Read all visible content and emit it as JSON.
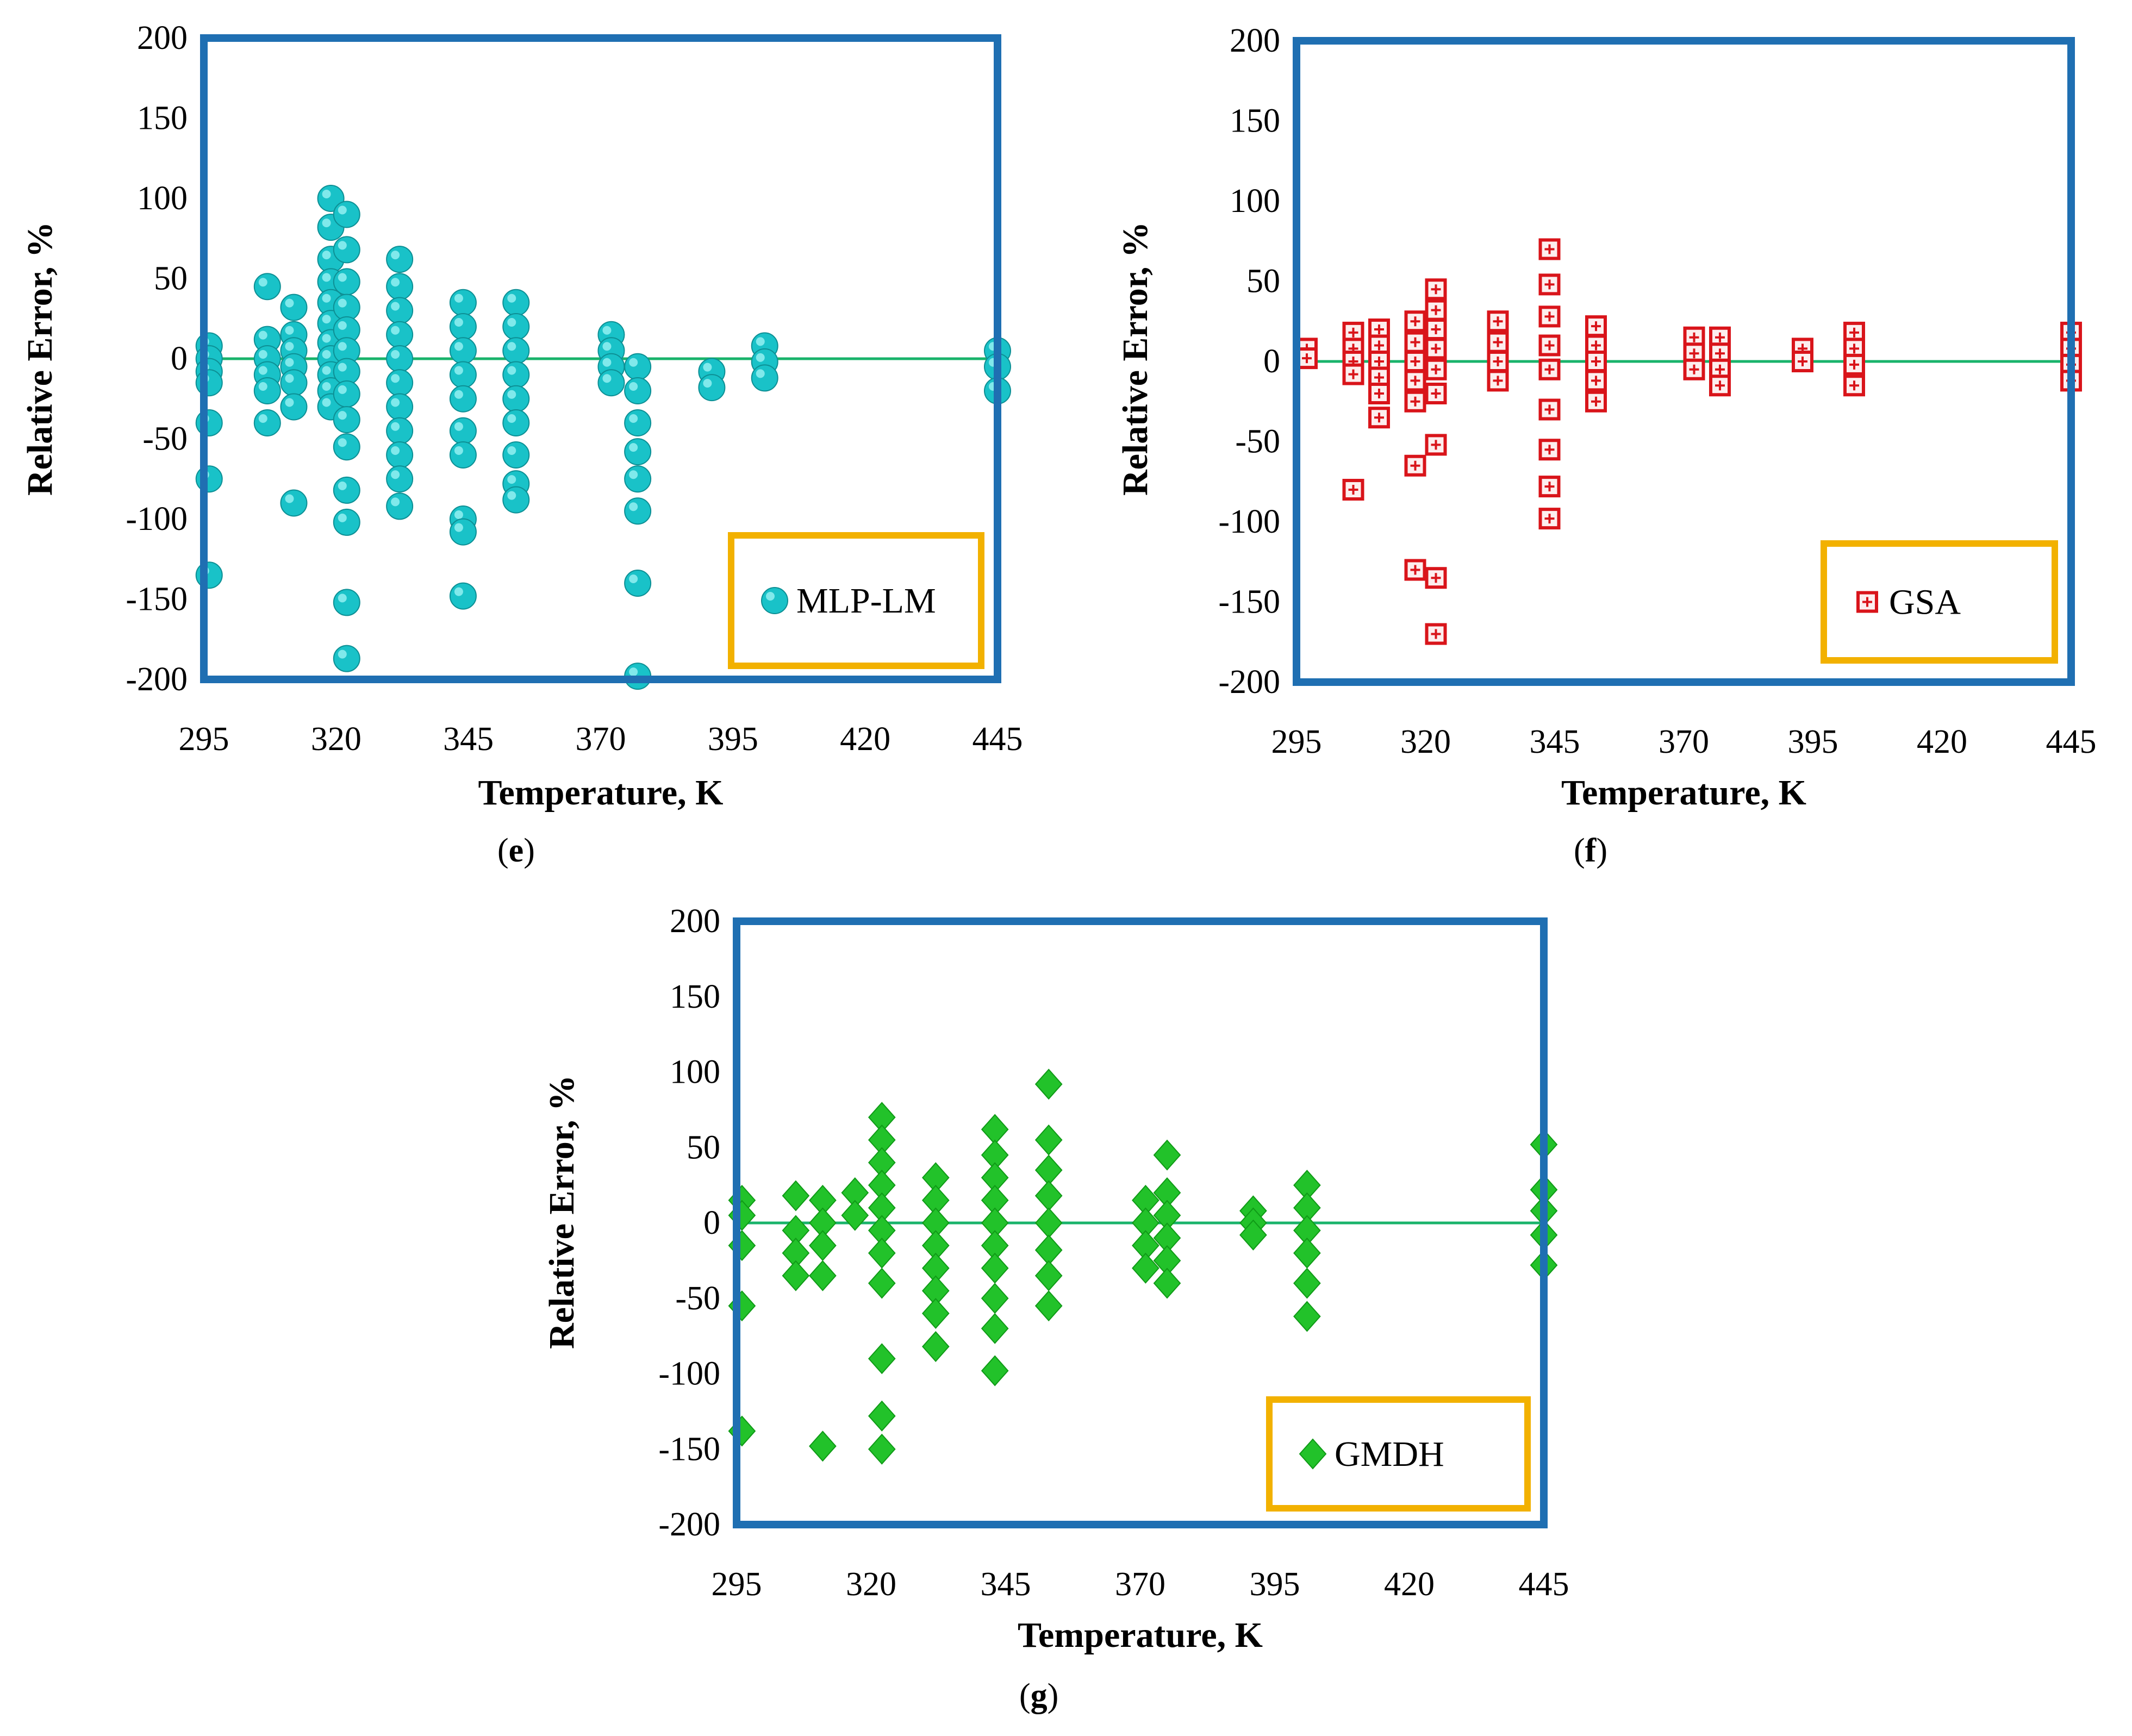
{
  "colors": {
    "plot_border": "#1f6fb2",
    "legend_border": "#f2b100",
    "zero_line": "#19b36b",
    "mlp": "#19c2c8",
    "gsa": "#d9141a",
    "gmdh": "#22c22a"
  },
  "chart_data": [
    {
      "type": "scatter",
      "panel_label": "e",
      "xlabel": "Temperature, K",
      "ylabel": "Relative Error, %",
      "xlim": [
        295,
        445
      ],
      "ylim": [
        -200,
        200
      ],
      "xticks": [
        "295",
        "320",
        "345",
        "370",
        "395",
        "420",
        "445"
      ],
      "yticks": [
        "200",
        "150",
        "100",
        "50",
        "0",
        "-50",
        "-100",
        "-150",
        "-200"
      ],
      "legend": "MLP-LM",
      "legend_position": "bottom-right",
      "marker": "sphere",
      "series": [
        {
          "name": "MLP-LM",
          "points": [
            [
              296,
              8
            ],
            [
              296,
              0
            ],
            [
              296,
              -8
            ],
            [
              296,
              -15
            ],
            [
              296,
              -40
            ],
            [
              296,
              -75
            ],
            [
              296,
              -135
            ],
            [
              307,
              45
            ],
            [
              307,
              12
            ],
            [
              307,
              0
            ],
            [
              307,
              -10
            ],
            [
              307,
              -20
            ],
            [
              307,
              -40
            ],
            [
              312,
              32
            ],
            [
              312,
              15
            ],
            [
              312,
              5
            ],
            [
              312,
              -5
            ],
            [
              312,
              -15
            ],
            [
              312,
              -30
            ],
            [
              312,
              -90
            ],
            [
              319,
              100
            ],
            [
              319,
              82
            ],
            [
              319,
              62
            ],
            [
              319,
              48
            ],
            [
              319,
              35
            ],
            [
              319,
              22
            ],
            [
              319,
              10
            ],
            [
              319,
              0
            ],
            [
              319,
              -10
            ],
            [
              319,
              -20
            ],
            [
              319,
              -30
            ],
            [
              322,
              90
            ],
            [
              322,
              68
            ],
            [
              322,
              48
            ],
            [
              322,
              32
            ],
            [
              322,
              18
            ],
            [
              322,
              5
            ],
            [
              322,
              -8
            ],
            [
              322,
              -22
            ],
            [
              322,
              -38
            ],
            [
              322,
              -55
            ],
            [
              322,
              -82
            ],
            [
              322,
              -102
            ],
            [
              322,
              -152
            ],
            [
              322,
              -187
            ],
            [
              332,
              62
            ],
            [
              332,
              45
            ],
            [
              332,
              30
            ],
            [
              332,
              15
            ],
            [
              332,
              0
            ],
            [
              332,
              -15
            ],
            [
              332,
              -30
            ],
            [
              332,
              -45
            ],
            [
              332,
              -60
            ],
            [
              332,
              -75
            ],
            [
              332,
              -92
            ],
            [
              344,
              35
            ],
            [
              344,
              20
            ],
            [
              344,
              5
            ],
            [
              344,
              -10
            ],
            [
              344,
              -25
            ],
            [
              344,
              -45
            ],
            [
              344,
              -60
            ],
            [
              344,
              -100
            ],
            [
              344,
              -108
            ],
            [
              344,
              -148
            ],
            [
              354,
              35
            ],
            [
              354,
              20
            ],
            [
              354,
              5
            ],
            [
              354,
              -10
            ],
            [
              354,
              -25
            ],
            [
              354,
              -40
            ],
            [
              354,
              -60
            ],
            [
              354,
              -78
            ],
            [
              354,
              -88
            ],
            [
              372,
              15
            ],
            [
              372,
              5
            ],
            [
              372,
              -5
            ],
            [
              372,
              -15
            ],
            [
              377,
              -5
            ],
            [
              377,
              -20
            ],
            [
              377,
              -40
            ],
            [
              377,
              -58
            ],
            [
              377,
              -75
            ],
            [
              377,
              -95
            ],
            [
              377,
              -140
            ],
            [
              377,
              -198
            ],
            [
              391,
              -8
            ],
            [
              391,
              -18
            ],
            [
              401,
              8
            ],
            [
              401,
              -2
            ],
            [
              401,
              -12
            ],
            [
              445,
              5
            ],
            [
              445,
              -5
            ],
            [
              445,
              -20
            ]
          ]
        }
      ]
    },
    {
      "type": "scatter",
      "panel_label": "f",
      "xlabel": "Temperature, K",
      "ylabel": "Relative Error, %",
      "xlim": [
        295,
        445
      ],
      "ylim": [
        -200,
        200
      ],
      "xticks": [
        "295",
        "320",
        "345",
        "370",
        "395",
        "420",
        "445"
      ],
      "yticks": [
        "200",
        "150",
        "100",
        "50",
        "0",
        "-50",
        "-100",
        "-150",
        "-200"
      ],
      "legend": "GSA",
      "legend_position": "bottom-right",
      "marker": "square-plus",
      "series": [
        {
          "name": "GSA",
          "points": [
            [
              297,
              8
            ],
            [
              297,
              2
            ],
            [
              306,
              18
            ],
            [
              306,
              8
            ],
            [
              306,
              0
            ],
            [
              306,
              -8
            ],
            [
              306,
              -80
            ],
            [
              311,
              20
            ],
            [
              311,
              10
            ],
            [
              311,
              0
            ],
            [
              311,
              -10
            ],
            [
              311,
              -20
            ],
            [
              311,
              -35
            ],
            [
              318,
              25
            ],
            [
              318,
              12
            ],
            [
              318,
              0
            ],
            [
              318,
              -12
            ],
            [
              318,
              -25
            ],
            [
              318,
              -65
            ],
            [
              318,
              -130
            ],
            [
              322,
              45
            ],
            [
              322,
              32
            ],
            [
              322,
              20
            ],
            [
              322,
              8
            ],
            [
              322,
              -5
            ],
            [
              322,
              -20
            ],
            [
              322,
              -52
            ],
            [
              322,
              -135
            ],
            [
              322,
              -170
            ],
            [
              334,
              25
            ],
            [
              334,
              12
            ],
            [
              334,
              0
            ],
            [
              334,
              -12
            ],
            [
              344,
              70
            ],
            [
              344,
              48
            ],
            [
              344,
              28
            ],
            [
              344,
              10
            ],
            [
              344,
              -5
            ],
            [
              344,
              -30
            ],
            [
              344,
              -55
            ],
            [
              344,
              -78
            ],
            [
              344,
              -98
            ],
            [
              353,
              22
            ],
            [
              353,
              10
            ],
            [
              353,
              0
            ],
            [
              353,
              -12
            ],
            [
              353,
              -25
            ],
            [
              372,
              15
            ],
            [
              372,
              5
            ],
            [
              372,
              -5
            ],
            [
              377,
              15
            ],
            [
              377,
              5
            ],
            [
              377,
              -5
            ],
            [
              377,
              -15
            ],
            [
              393,
              8
            ],
            [
              393,
              0
            ],
            [
              403,
              18
            ],
            [
              403,
              8
            ],
            [
              403,
              -2
            ],
            [
              403,
              -15
            ],
            [
              445,
              18
            ],
            [
              445,
              8
            ],
            [
              445,
              -2
            ],
            [
              445,
              -12
            ]
          ]
        }
      ]
    },
    {
      "type": "scatter",
      "panel_label": "g",
      "xlabel": "Temperature, K",
      "ylabel": "Relative Error, %",
      "xlim": [
        295,
        445
      ],
      "ylim": [
        -200,
        200
      ],
      "xticks": [
        "295",
        "320",
        "345",
        "370",
        "395",
        "420",
        "445"
      ],
      "yticks": [
        "200",
        "150",
        "100",
        "50",
        "0",
        "-50",
        "-100",
        "-150",
        "-200"
      ],
      "legend": "GMDH",
      "legend_position": "bottom-right",
      "marker": "diamond",
      "series": [
        {
          "name": "GMDH",
          "points": [
            [
              296,
              15
            ],
            [
              296,
              5
            ],
            [
              296,
              -15
            ],
            [
              296,
              -55
            ],
            [
              296,
              -138
            ],
            [
              306,
              18
            ],
            [
              306,
              -5
            ],
            [
              306,
              -20
            ],
            [
              306,
              -35
            ],
            [
              311,
              15
            ],
            [
              311,
              0
            ],
            [
              311,
              -15
            ],
            [
              311,
              -35
            ],
            [
              311,
              -148
            ],
            [
              317,
              20
            ],
            [
              317,
              5
            ],
            [
              322,
              70
            ],
            [
              322,
              55
            ],
            [
              322,
              40
            ],
            [
              322,
              25
            ],
            [
              322,
              10
            ],
            [
              322,
              -5
            ],
            [
              322,
              -20
            ],
            [
              322,
              -40
            ],
            [
              322,
              -90
            ],
            [
              322,
              -128
            ],
            [
              322,
              -150
            ],
            [
              332,
              30
            ],
            [
              332,
              15
            ],
            [
              332,
              0
            ],
            [
              332,
              -15
            ],
            [
              332,
              -30
            ],
            [
              332,
              -45
            ],
            [
              332,
              -60
            ],
            [
              332,
              -82
            ],
            [
              343,
              62
            ],
            [
              343,
              45
            ],
            [
              343,
              30
            ],
            [
              343,
              15
            ],
            [
              343,
              0
            ],
            [
              343,
              -15
            ],
            [
              343,
              -30
            ],
            [
              343,
              -50
            ],
            [
              343,
              -70
            ],
            [
              343,
              -98
            ],
            [
              353,
              92
            ],
            [
              353,
              55
            ],
            [
              353,
              35
            ],
            [
              353,
              18
            ],
            [
              353,
              0
            ],
            [
              353,
              -18
            ],
            [
              353,
              -35
            ],
            [
              353,
              -55
            ],
            [
              371,
              15
            ],
            [
              371,
              0
            ],
            [
              371,
              -15
            ],
            [
              371,
              -30
            ],
            [
              375,
              45
            ],
            [
              375,
              20
            ],
            [
              375,
              5
            ],
            [
              375,
              -10
            ],
            [
              375,
              -25
            ],
            [
              375,
              -40
            ],
            [
              391,
              8
            ],
            [
              391,
              0
            ],
            [
              391,
              -8
            ],
            [
              401,
              25
            ],
            [
              401,
              10
            ],
            [
              401,
              -5
            ],
            [
              401,
              -20
            ],
            [
              401,
              -40
            ],
            [
              401,
              -62
            ],
            [
              445,
              52
            ],
            [
              445,
              22
            ],
            [
              445,
              8
            ],
            [
              445,
              -8
            ],
            [
              445,
              -28
            ]
          ]
        }
      ]
    }
  ]
}
